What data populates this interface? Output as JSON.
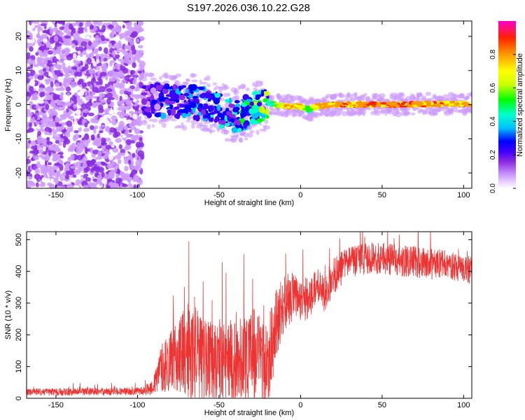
{
  "title": "S197.2026.036.10.22.G28",
  "colormap": [
    "#ffffff",
    "#cc99ff",
    "#8a2be2",
    "#3f00ff",
    "#0000ff",
    "#00bfff",
    "#00ffcc",
    "#00ff00",
    "#ccff00",
    "#ffff00",
    "#ff9900",
    "#ff2200",
    "#ff00cc"
  ],
  "chart_data": [
    {
      "type": "heatmap",
      "title": "",
      "xlabel": "Height of straight line (km)",
      "ylabel": "Frequency (Hz)",
      "xlim": [
        -168,
        105
      ],
      "ylim": [
        -24.5,
        24.5
      ],
      "xticks": [
        -150,
        -100,
        -50,
        0,
        50,
        100
      ],
      "yticks": [
        -20,
        -10,
        0,
        10,
        20
      ],
      "colorbar": {
        "label": "Normalized spectral amplitude",
        "range": [
          0,
          1
        ],
        "ticks": [
          0.0,
          0.2,
          0.4,
          0.6,
          0.8
        ]
      },
      "ridge": {
        "description": "noise region below about -97 km, scattered energy near 0 Hz from -97 to -20 km, stable narrow line near 0 Hz above -20 km",
        "x": [
          -97,
          -80,
          -60,
          -40,
          -20,
          -10,
          0,
          5,
          10,
          20,
          40,
          60,
          80,
          104
        ],
        "freq": [
          1.5,
          1.0,
          0.5,
          -3.5,
          0.5,
          -0.5,
          -0.5,
          -1.5,
          -0.5,
          0.0,
          0.0,
          0.0,
          0.2,
          0.2
        ],
        "amplitude": [
          0.15,
          0.3,
          0.3,
          0.35,
          0.5,
          0.8,
          0.8,
          0.6,
          0.8,
          0.85,
          0.9,
          0.9,
          0.85,
          0.85
        ]
      }
    },
    {
      "type": "line",
      "title": "",
      "xlabel": "Height of straight line (km)",
      "ylabel": "SNR (10 * v/v)",
      "xlim": [
        -168,
        105
      ],
      "ylim": [
        0,
        525
      ],
      "xticks": [
        -150,
        -100,
        -50,
        0,
        50,
        100
      ],
      "yticks": [
        0,
        100,
        200,
        300,
        400,
        500
      ],
      "series": [
        {
          "name": "SNR",
          "color": "#ee3333",
          "envelope_x": [
            -168,
            -150,
            -100,
            -95,
            -90,
            -85,
            -75,
            -70,
            -60,
            -50,
            -40,
            -30,
            -20,
            -15,
            -10,
            -5,
            0,
            5,
            10,
            15,
            20,
            25,
            30,
            40,
            50,
            60,
            70,
            80,
            90,
            100,
            104
          ],
          "envelope_mean": [
            20,
            20,
            22,
            25,
            40,
            100,
            130,
            150,
            130,
            120,
            120,
            140,
            120,
            230,
            300,
            320,
            300,
            320,
            350,
            330,
            380,
            410,
            430,
            440,
            440,
            435,
            430,
            425,
            420,
            410,
            405
          ],
          "envelope_spread": [
            10,
            12,
            12,
            15,
            30,
            80,
            110,
            160,
            140,
            130,
            130,
            150,
            140,
            120,
            90,
            80,
            70,
            70,
            60,
            60,
            60,
            55,
            50,
            50,
            50,
            50,
            50,
            50,
            45,
            45,
            45
          ]
        }
      ]
    }
  ]
}
